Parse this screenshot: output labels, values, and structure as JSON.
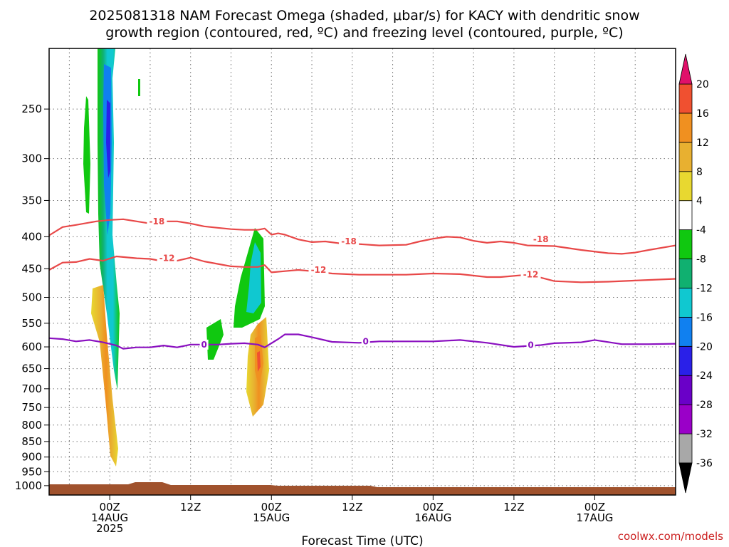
{
  "chart_data": {
    "type": "heatmap",
    "title_line1": "2025081318 NAM Forecast Omega (shaded, μbar/s) for KACY with dendritic snow",
    "title_line2": "growth region (contoured, red, ºC) and freezing level (contoured, purple, ºC)",
    "xlabel": "Forecast Time (UTC)",
    "credit": "coolwx.com/models",
    "xlim": [
      -9,
      84
    ],
    "yaxis_scale": "log",
    "ylim_hPa": [
      1035,
      200
    ],
    "grid": true,
    "y_ticks": [
      250,
      300,
      350,
      400,
      450,
      500,
      550,
      600,
      650,
      700,
      750,
      800,
      850,
      900,
      950,
      1000
    ],
    "x_ticks": [
      {
        "hour": 0,
        "l1": "00Z",
        "l2": "14AUG",
        "l3": "2025"
      },
      {
        "hour": 12,
        "l1": "12Z",
        "l2": "",
        "l3": ""
      },
      {
        "hour": 24,
        "l1": "00Z",
        "l2": "15AUG",
        "l3": ""
      },
      {
        "hour": 36,
        "l1": "12Z",
        "l2": "",
        "l3": ""
      },
      {
        "hour": 48,
        "l1": "00Z",
        "l2": "16AUG",
        "l3": ""
      },
      {
        "hour": 60,
        "l1": "12Z",
        "l2": "",
        "l3": ""
      },
      {
        "hour": 72,
        "l1": "00Z",
        "l2": "17AUG",
        "l3": ""
      }
    ],
    "colorbar": {
      "colors": [
        "#a8a8a8",
        "#9a00c8",
        "#6a00c8",
        "#2a20e8",
        "#1080f0",
        "#10c8d0",
        "#10b070",
        "#10c810",
        "#ffffff",
        "#e8d830",
        "#e8b030",
        "#f09020",
        "#f05030"
      ],
      "labels": [
        "-36",
        "-32",
        "-28",
        "-24",
        "-20",
        "-16",
        "-12",
        "-8",
        "-4",
        "4",
        "8",
        "12",
        "16",
        "20"
      ],
      "under_color": "#000000",
      "over_color": "#e0106a"
    },
    "series": [
      {
        "contour_label": "-18",
        "color": "#e84848",
        "points": [
          [
            -9,
            398
          ],
          [
            -7,
            386
          ],
          [
            -5,
            383
          ],
          [
            -2,
            378
          ],
          [
            0,
            376
          ],
          [
            2,
            375
          ],
          [
            4,
            378
          ],
          [
            6,
            381
          ],
          [
            8,
            378
          ],
          [
            10,
            378
          ],
          [
            12,
            381
          ],
          [
            14,
            385
          ],
          [
            16,
            387
          ],
          [
            18,
            389
          ],
          [
            20,
            390
          ],
          [
            22,
            390
          ],
          [
            23,
            388
          ],
          [
            24,
            397
          ],
          [
            25,
            395
          ],
          [
            26,
            397
          ],
          [
            28,
            404
          ],
          [
            30,
            408
          ],
          [
            32,
            407
          ],
          [
            35,
            411
          ],
          [
            37,
            411
          ],
          [
            40,
            413
          ],
          [
            44,
            412
          ],
          [
            46,
            407
          ],
          [
            48,
            403
          ],
          [
            50,
            400
          ],
          [
            52,
            401
          ],
          [
            54,
            406
          ],
          [
            56,
            409
          ],
          [
            58,
            407
          ],
          [
            60,
            409
          ],
          [
            62,
            413
          ],
          [
            66,
            414
          ],
          [
            70,
            420
          ],
          [
            74,
            425
          ],
          [
            76,
            426
          ],
          [
            78,
            424
          ],
          [
            80,
            420
          ],
          [
            84,
            413
          ]
        ],
        "label_positions": [
          [
            7,
            378
          ],
          [
            35.5,
            407
          ],
          [
            64,
            404
          ]
        ]
      },
      {
        "contour_label": "-12",
        "color": "#e84848",
        "points": [
          [
            -9,
            452
          ],
          [
            -7,
            440
          ],
          [
            -5,
            439
          ],
          [
            -3,
            434
          ],
          [
            -1,
            437
          ],
          [
            1,
            430
          ],
          [
            4,
            433
          ],
          [
            6,
            434
          ],
          [
            8,
            438
          ],
          [
            10,
            437
          ],
          [
            12,
            432
          ],
          [
            14,
            438
          ],
          [
            16,
            442
          ],
          [
            18,
            446
          ],
          [
            20,
            447
          ],
          [
            22,
            447
          ],
          [
            23,
            444
          ],
          [
            24,
            456
          ],
          [
            26,
            454
          ],
          [
            28,
            452
          ],
          [
            30,
            454
          ],
          [
            33,
            458
          ],
          [
            37,
            460
          ],
          [
            40,
            460
          ],
          [
            44,
            460
          ],
          [
            48,
            458
          ],
          [
            52,
            459
          ],
          [
            56,
            464
          ],
          [
            58,
            464
          ],
          [
            62,
            460
          ],
          [
            64,
            465
          ],
          [
            66,
            471
          ],
          [
            70,
            473
          ],
          [
            74,
            472
          ],
          [
            78,
            470
          ],
          [
            84,
            467
          ]
        ],
        "label_positions": [
          [
            8.5,
            433
          ],
          [
            31,
            452
          ],
          [
            62.5,
            460
          ]
        ]
      },
      {
        "contour_label": "0",
        "color": "#8a10c0",
        "points": [
          [
            -9,
            581
          ],
          [
            -7,
            583
          ],
          [
            -5,
            588
          ],
          [
            -3,
            585
          ],
          [
            -1,
            590
          ],
          [
            1,
            597
          ],
          [
            2,
            604
          ],
          [
            4,
            601
          ],
          [
            6,
            601
          ],
          [
            8,
            597
          ],
          [
            10,
            601
          ],
          [
            12,
            595
          ],
          [
            14,
            595
          ],
          [
            16,
            595
          ],
          [
            18,
            593
          ],
          [
            20,
            592
          ],
          [
            22,
            595
          ],
          [
            23,
            601
          ],
          [
            25,
            583
          ],
          [
            26,
            573
          ],
          [
            28,
            573
          ],
          [
            30,
            579
          ],
          [
            33,
            589
          ],
          [
            37,
            591
          ],
          [
            40,
            588
          ],
          [
            44,
            588
          ],
          [
            48,
            588
          ],
          [
            52,
            585
          ],
          [
            56,
            591
          ],
          [
            60,
            600
          ],
          [
            64,
            596
          ],
          [
            66,
            592
          ],
          [
            70,
            590
          ],
          [
            72,
            585
          ],
          [
            76,
            594
          ],
          [
            80,
            594
          ],
          [
            84,
            593
          ]
        ],
        "label_positions": [
          [
            14,
            595
          ],
          [
            38,
            588
          ],
          [
            62.5,
            596
          ]
        ]
      }
    ]
  }
}
